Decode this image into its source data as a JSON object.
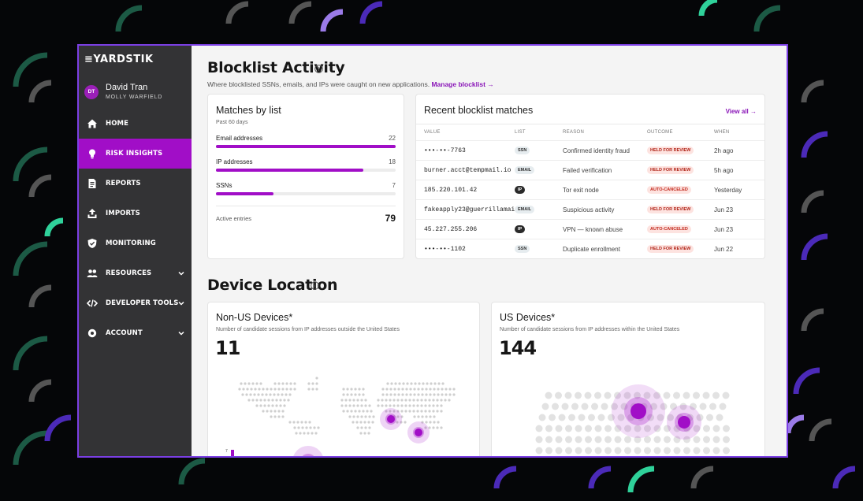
{
  "brand": {
    "logo": "≡YARDSTIK",
    "accent": "#a10ec7",
    "border": "#7b3fe4"
  },
  "user": {
    "initials": "DT",
    "name": "David Tran",
    "org": "MOLLY WARFIELD"
  },
  "nav": [
    {
      "label": "HOME",
      "icon": "home-icon",
      "active": false,
      "chevron": false
    },
    {
      "label": "RISK INSIGHTS",
      "icon": "lightbulb-icon",
      "active": true,
      "chevron": false
    },
    {
      "label": "REPORTS",
      "icon": "document-icon",
      "active": false,
      "chevron": false
    },
    {
      "label": "IMPORTS",
      "icon": "upload-icon",
      "active": false,
      "chevron": false
    },
    {
      "label": "MONITORING",
      "icon": "shield-icon",
      "active": false,
      "chevron": false
    },
    {
      "label": "RESOURCES",
      "icon": "people-icon",
      "active": false,
      "chevron": true
    },
    {
      "label": "DEVELOPER TOOLS",
      "icon": "code-icon",
      "active": false,
      "chevron": true
    },
    {
      "label": "ACCOUNT",
      "icon": "gear-icon",
      "active": false,
      "chevron": true
    }
  ],
  "blocklist": {
    "title": "Blocklist Activity",
    "subtitle": "Where blocklisted SSNs, emails, and IPs were caught on new applications.",
    "manage_link": "Manage blocklist →",
    "matches": {
      "title": "Matches by list",
      "period": "Past 60 days",
      "rows": [
        {
          "label": "Email addresses",
          "value": "22",
          "fraction": 1.0
        },
        {
          "label": "IP addresses",
          "value": "18",
          "fraction": 0.82
        },
        {
          "label": "SSNs",
          "value": "7",
          "fraction": 0.32
        }
      ],
      "active_label": "Active entries",
      "active_value": "79"
    },
    "recent": {
      "title": "Recent blocklist matches",
      "view_all": "View all →",
      "headers": [
        "VALUE",
        "LIST",
        "REASON",
        "OUTCOME",
        "WHEN"
      ],
      "rows": [
        {
          "value": "•••-••-7763",
          "list": "SSN",
          "reason": "Confirmed identity fraud",
          "outcome": "HELD FOR REVIEW",
          "when": "2h ago"
        },
        {
          "value": "burner.acct@tempmail.io",
          "list": "EMAIL",
          "reason": "Failed verification",
          "outcome": "HELD FOR REVIEW",
          "when": "5h ago"
        },
        {
          "value": "185.220.101.42",
          "list": "IP",
          "reason": "Tor exit node",
          "outcome": "AUTO-CANCELED",
          "when": "Yesterday"
        },
        {
          "value": "fakeapply23@guerrillamai…",
          "list": "EMAIL",
          "reason": "Suspicious activity",
          "outcome": "HELD FOR REVIEW",
          "when": "Jun 23"
        },
        {
          "value": "45.227.255.206",
          "list": "IP",
          "reason": "VPN — known abuse",
          "outcome": "AUTO-CANCELED",
          "when": "Jun 23"
        },
        {
          "value": "•••-••-1102",
          "list": "SSN",
          "reason": "Duplicate enrollment",
          "outcome": "HELD FOR REVIEW",
          "when": "Jun 22"
        }
      ]
    }
  },
  "device": {
    "title": "Device Location",
    "non_us": {
      "title": "Non-US Devices*",
      "subtitle": "Number of candidate sessions from IP addresses outside the United States",
      "count": "11",
      "axis_label": "7"
    },
    "us": {
      "title": "US Devices*",
      "subtitle": "Number of candidate sessions from IP addresses within the United States",
      "count": "144"
    }
  }
}
